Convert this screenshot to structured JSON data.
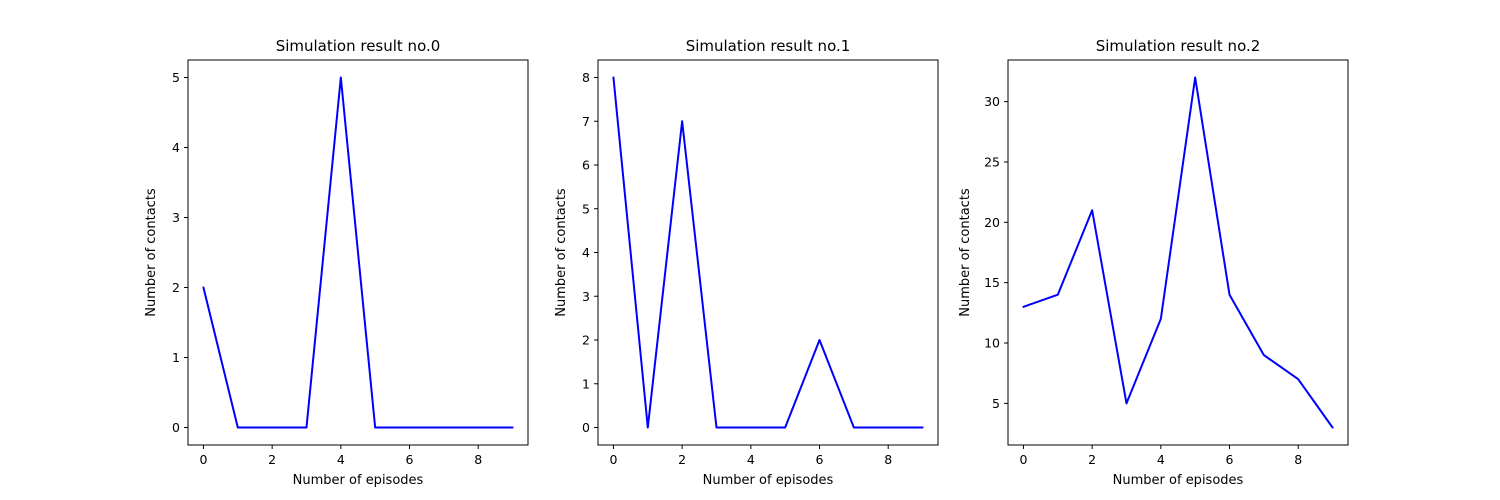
{
  "chart_data": [
    {
      "type": "line",
      "title": "Simulation result no.0",
      "xlabel": "Number of episodes",
      "ylabel": "Number of contacts",
      "x": [
        0,
        1,
        2,
        3,
        4,
        5,
        6,
        7,
        8,
        9
      ],
      "series": [
        {
          "values": [
            2,
            0,
            0,
            0,
            5,
            0,
            0,
            0,
            0,
            0
          ],
          "color": "#0000ff"
        }
      ],
      "xlim": [
        -0.45,
        9.45
      ],
      "ylim": [
        -0.25,
        5.25
      ],
      "xticks": [
        0,
        2,
        4,
        6,
        8
      ],
      "yticks": [
        0,
        1,
        2,
        3,
        4,
        5
      ],
      "grid": false
    },
    {
      "type": "line",
      "title": "Simulation result no.1",
      "xlabel": "Number of episodes",
      "ylabel": "Number of contacts",
      "x": [
        0,
        1,
        2,
        3,
        4,
        5,
        6,
        7,
        8,
        9
      ],
      "series": [
        {
          "values": [
            8,
            0,
            7,
            0,
            0,
            0,
            2,
            0,
            0,
            0
          ],
          "color": "#0000ff"
        }
      ],
      "xlim": [
        -0.45,
        9.45
      ],
      "ylim": [
        -0.4,
        8.4
      ],
      "xticks": [
        0,
        2,
        4,
        6,
        8
      ],
      "yticks": [
        0,
        1,
        2,
        3,
        4,
        5,
        6,
        7,
        8
      ],
      "grid": false
    },
    {
      "type": "line",
      "title": "Simulation result no.2",
      "xlabel": "Number of episodes",
      "ylabel": "Number of contacts",
      "x": [
        0,
        1,
        2,
        3,
        4,
        5,
        6,
        7,
        8,
        9
      ],
      "series": [
        {
          "values": [
            13,
            14,
            21,
            5,
            12,
            32,
            14,
            9,
            7,
            3
          ],
          "color": "#0000ff"
        }
      ],
      "xlim": [
        -0.45,
        9.45
      ],
      "ylim": [
        1.55,
        33.45
      ],
      "xticks": [
        0,
        2,
        4,
        6,
        8
      ],
      "yticks": [
        5,
        10,
        15,
        20,
        25,
        30
      ],
      "grid": false
    }
  ]
}
